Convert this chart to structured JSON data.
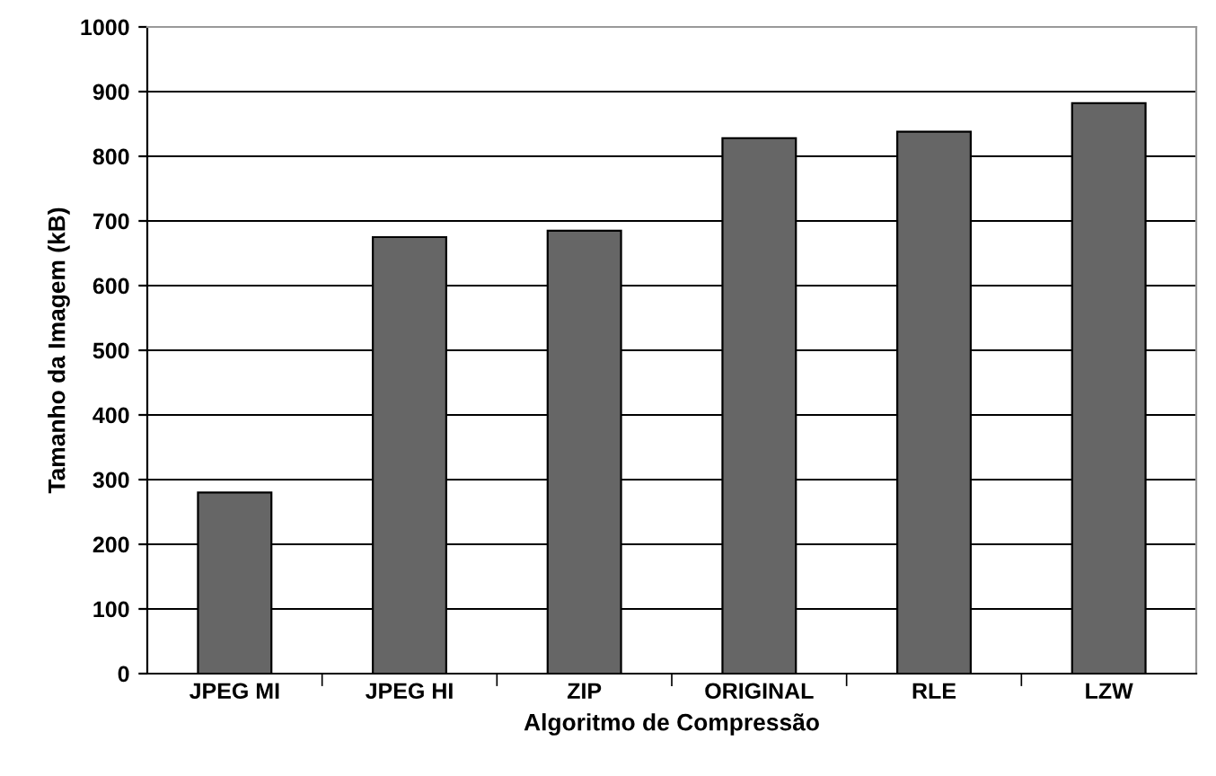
{
  "chart_data": {
    "type": "bar",
    "xlabel": "Algoritmo de Compressão",
    "ylabel": "Tamanho da Imagem (kB)",
    "categories": [
      "JPEG MI",
      "JPEG HI",
      "ZIP",
      "ORIGINAL",
      "RLE",
      "LZW"
    ],
    "values": [
      280,
      675,
      685,
      828,
      838,
      882
    ],
    "color": "#666666",
    "ylim": [
      0,
      1000
    ],
    "yticks": [
      0,
      100,
      200,
      300,
      400,
      500,
      600,
      700,
      800,
      900,
      1000
    ],
    "grid": "y"
  }
}
